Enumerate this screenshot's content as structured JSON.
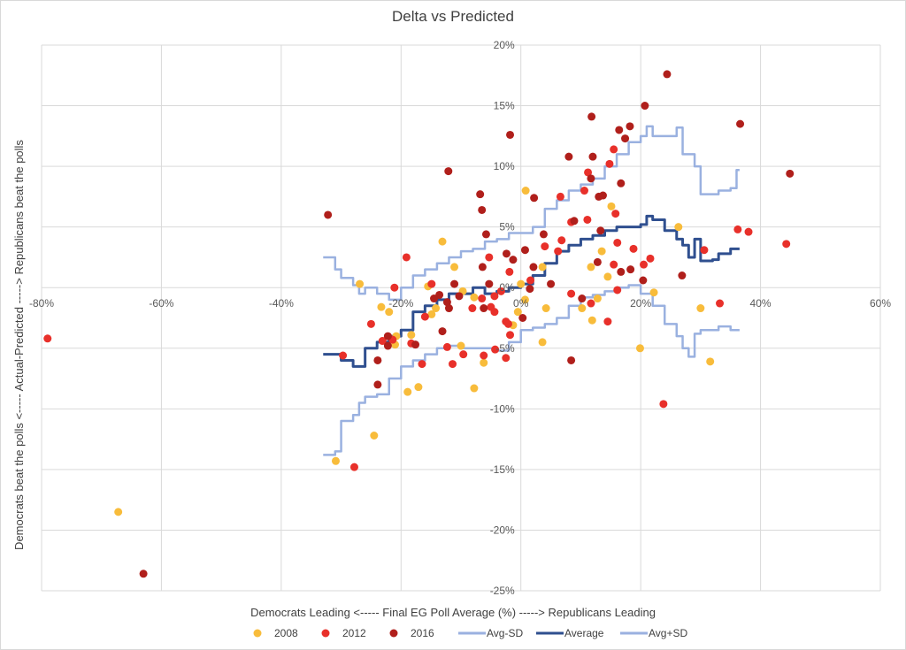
{
  "chart_data": {
    "type": "scatter",
    "title": "Delta vs Predicted",
    "xlabel": "Democrats Leading <----- Final EG Poll Average (%) -----> Republicans Leading",
    "ylabel": "Democrats  beat the polls <----- Actual-Predicted -----> Republicans beat the polls",
    "xlim": [
      -80,
      60
    ],
    "ylim": [
      -25,
      20
    ],
    "x_ticks": [
      -80,
      -60,
      -40,
      -20,
      0,
      20,
      40,
      60
    ],
    "x_tick_labels": [
      "-80%",
      "-60%",
      "-40%",
      "-20%",
      "0%",
      "20%",
      "40%",
      "60%"
    ],
    "y_ticks": [
      -25,
      -20,
      -15,
      -10,
      -5,
      0,
      5,
      10,
      15,
      20
    ],
    "y_tick_labels": [
      "-25%",
      "-20%",
      "-15%",
      "-10%",
      "-5%",
      "0%",
      "5%",
      "10%",
      "15%",
      "20%"
    ],
    "grid": true,
    "legend_position": "bottom",
    "series": [
      {
        "name": "2008",
        "kind": "scatter",
        "color": "#F8BC3B",
        "points": [
          [
            -67.2,
            -18.5
          ],
          [
            -30.9,
            -14.3
          ],
          [
            -24.5,
            -12.2
          ],
          [
            -26.9,
            0.3
          ],
          [
            -23.3,
            -1.6
          ],
          [
            -22,
            -2.0
          ],
          [
            -20.8,
            -4.0
          ],
          [
            -21,
            -4.7
          ],
          [
            -18.3,
            -3.9
          ],
          [
            -18.9,
            -8.6
          ],
          [
            -17.1,
            -8.2
          ],
          [
            -11.1,
            1.7
          ],
          [
            -13.1,
            3.8
          ],
          [
            -15.5,
            0.1
          ],
          [
            -14.9,
            -2.2
          ],
          [
            -14.2,
            -1.7
          ],
          [
            -9.7,
            -0.3
          ],
          [
            -7.8,
            -0.8
          ],
          [
            -10,
            -4.8
          ],
          [
            -7.8,
            -8.3
          ],
          [
            -6.2,
            -6.2
          ],
          [
            -1.3,
            -3.1
          ],
          [
            -0.5,
            -2.0
          ],
          [
            0.7,
            -1.0
          ],
          [
            0,
            0.3
          ],
          [
            0.8,
            8.0
          ],
          [
            3.6,
            1.7
          ],
          [
            4.2,
            -1.7
          ],
          [
            3.6,
            -4.5
          ],
          [
            15.1,
            6.7
          ],
          [
            13.5,
            3.0
          ],
          [
            11.7,
            1.7
          ],
          [
            14.5,
            0.9
          ],
          [
            12.8,
            -0.9
          ],
          [
            10.2,
            -1.7
          ],
          [
            11.9,
            -2.7
          ],
          [
            19.9,
            -5.0
          ],
          [
            22.2,
            -0.4
          ],
          [
            26.3,
            5.0
          ],
          [
            30,
            -1.7
          ],
          [
            31.6,
            -6.1
          ]
        ]
      },
      {
        "name": "2012",
        "kind": "scatter",
        "color": "#E8302A",
        "points": [
          [
            -79,
            -4.2
          ],
          [
            -27.8,
            -14.8
          ],
          [
            -29.7,
            -5.6
          ],
          [
            -25,
            -3.0
          ],
          [
            -21.1,
            0
          ],
          [
            -19.1,
            2.5
          ],
          [
            -23.1,
            -4.4
          ],
          [
            -21.4,
            -4.3
          ],
          [
            -18.3,
            -4.6
          ],
          [
            -16.5,
            -6.3
          ],
          [
            -16,
            -2.4
          ],
          [
            -14.9,
            0.3
          ],
          [
            -12.3,
            -4.9
          ],
          [
            -11.4,
            -6.3
          ],
          [
            -9.6,
            -5.5
          ],
          [
            -8.1,
            -1.7
          ],
          [
            -5.3,
            2.5
          ],
          [
            -6.2,
            -5.6
          ],
          [
            -5,
            -1.6
          ],
          [
            -4.4,
            -2.0
          ],
          [
            -4.4,
            -0.7
          ],
          [
            -3.3,
            -0.3
          ],
          [
            -6.5,
            -0.9
          ],
          [
            -4.3,
            -5.1
          ],
          [
            -2.5,
            -2.8
          ],
          [
            -2.1,
            -3.0
          ],
          [
            -1.8,
            -3.9
          ],
          [
            -2.5,
            -5.8
          ],
          [
            -1.9,
            1.3
          ],
          [
            1.6,
            0.6
          ],
          [
            4,
            3.4
          ],
          [
            6.8,
            3.9
          ],
          [
            6.2,
            3.0
          ],
          [
            8.4,
            5.4
          ],
          [
            11.1,
            5.6
          ],
          [
            15.8,
            6.1
          ],
          [
            16.1,
            3.7
          ],
          [
            18.8,
            3.2
          ],
          [
            15.5,
            1.9
          ],
          [
            20.5,
            1.9
          ],
          [
            21.6,
            2.4
          ],
          [
            16.1,
            -0.2
          ],
          [
            8.4,
            -0.5
          ],
          [
            11.7,
            -1.3
          ],
          [
            14.5,
            -2.8
          ],
          [
            30.6,
            3.1
          ],
          [
            33.2,
            -1.3
          ],
          [
            36.2,
            4.8
          ],
          [
            38,
            4.6
          ],
          [
            44.3,
            3.6
          ],
          [
            23.8,
            -9.6
          ],
          [
            11.2,
            9.5
          ],
          [
            14.8,
            10.2
          ],
          [
            15.5,
            11.4
          ],
          [
            10.6,
            8.0
          ],
          [
            6.6,
            7.5
          ]
        ]
      },
      {
        "name": "2016",
        "kind": "scatter",
        "color": "#B01F1B",
        "points": [
          [
            -63,
            -23.6
          ],
          [
            -32.2,
            6.0
          ],
          [
            -23.9,
            -6.0
          ],
          [
            -23.9,
            -8.0
          ],
          [
            -22.2,
            -4.0
          ],
          [
            -22.2,
            -4.8
          ],
          [
            -17.6,
            -4.7
          ],
          [
            -13.1,
            -3.6
          ],
          [
            -13.6,
            -0.6
          ],
          [
            -14.5,
            -0.9
          ],
          [
            -11.1,
            0.3
          ],
          [
            -12.3,
            -1.2
          ],
          [
            -12,
            -1.7
          ],
          [
            -10.3,
            -0.7
          ],
          [
            -6.8,
            7.7
          ],
          [
            -6.5,
            6.4
          ],
          [
            -5.8,
            4.4
          ],
          [
            -6.4,
            1.7
          ],
          [
            -5.3,
            0.3
          ],
          [
            -6.2,
            -1.7
          ],
          [
            -2.4,
            2.8
          ],
          [
            -1.3,
            2.3
          ],
          [
            0.3,
            -2.5
          ],
          [
            0.7,
            3.1
          ],
          [
            1.5,
            -0.1
          ],
          [
            2.1,
            1.7
          ],
          [
            2.2,
            7.4
          ],
          [
            3.8,
            4.4
          ],
          [
            5,
            0.3
          ],
          [
            8.9,
            5.5
          ],
          [
            8.4,
            -6.0
          ],
          [
            10.2,
            -0.9
          ],
          [
            12.8,
            2.1
          ],
          [
            16.7,
            1.3
          ],
          [
            18.3,
            1.5
          ],
          [
            20.4,
            0.6
          ],
          [
            13.3,
            4.7
          ],
          [
            26.9,
            1.0
          ],
          [
            13,
            7.5
          ],
          [
            24.4,
            17.6
          ],
          [
            20.7,
            15.0
          ],
          [
            11.8,
            14.1
          ],
          [
            18.2,
            13.3
          ],
          [
            17.4,
            12.3
          ],
          [
            16.4,
            13.0
          ],
          [
            36.6,
            13.5
          ],
          [
            44.9,
            9.4
          ],
          [
            -1.8,
            12.6
          ],
          [
            -12.1,
            9.6
          ],
          [
            12,
            10.8
          ],
          [
            11.7,
            9.0
          ],
          [
            8,
            10.8
          ],
          [
            16.7,
            8.6
          ],
          [
            13.7,
            7.6
          ]
        ]
      },
      {
        "name": "Avg-SD",
        "kind": "line",
        "color": "#9AB1E0",
        "points": [
          [
            -33,
            -13.8
          ],
          [
            -31,
            -13.5
          ],
          [
            -30,
            -11
          ],
          [
            -28,
            -10.5
          ],
          [
            -27,
            -9.5
          ],
          [
            -26,
            -9
          ],
          [
            -24,
            -8.8
          ],
          [
            -22,
            -7.5
          ],
          [
            -20,
            -6.5
          ],
          [
            -18,
            -6
          ],
          [
            -16,
            -5.5
          ],
          [
            -14,
            -5
          ],
          [
            -12,
            -4.8
          ],
          [
            -10,
            -5
          ],
          [
            -8,
            -5
          ],
          [
            -6,
            -5
          ],
          [
            -4,
            -5.2
          ],
          [
            -2,
            -4.5
          ],
          [
            0,
            -3.5
          ],
          [
            2,
            -3.3
          ],
          [
            4,
            -3
          ],
          [
            6,
            -2.5
          ],
          [
            8,
            -1.5
          ],
          [
            10,
            -0.8
          ],
          [
            12,
            -0.6
          ],
          [
            14,
            -0.3
          ],
          [
            16,
            0
          ],
          [
            18,
            0.2
          ],
          [
            20,
            -0.5
          ],
          [
            22,
            -1.5
          ],
          [
            24,
            -3
          ],
          [
            26,
            -4
          ],
          [
            27,
            -5
          ],
          [
            28,
            -5.7
          ],
          [
            29,
            -3.8
          ],
          [
            30,
            -3.5
          ],
          [
            33,
            -3.2
          ],
          [
            35,
            -3.5
          ],
          [
            36.5,
            -3.5
          ]
        ]
      },
      {
        "name": "Average",
        "kind": "line",
        "color": "#2F4F8F",
        "points": [
          [
            -33,
            -5.5
          ],
          [
            -31,
            -5.5
          ],
          [
            -30,
            -6
          ],
          [
            -28,
            -6.5
          ],
          [
            -26,
            -5
          ],
          [
            -24,
            -4.5
          ],
          [
            -22,
            -4
          ],
          [
            -20,
            -3.5
          ],
          [
            -18,
            -2
          ],
          [
            -16,
            -1.5
          ],
          [
            -14,
            -1
          ],
          [
            -12,
            -0.5
          ],
          [
            -10,
            -0.5
          ],
          [
            -8,
            0
          ],
          [
            -6,
            -0.5
          ],
          [
            -4,
            -0.3
          ],
          [
            -2,
            0
          ],
          [
            0,
            0.3
          ],
          [
            2,
            1
          ],
          [
            4,
            2
          ],
          [
            6,
            3
          ],
          [
            8,
            3.5
          ],
          [
            10,
            4
          ],
          [
            12,
            4.3
          ],
          [
            14,
            4.7
          ],
          [
            16,
            5
          ],
          [
            18,
            5
          ],
          [
            20,
            5.2
          ],
          [
            21,
            5.9
          ],
          [
            22,
            5.6
          ],
          [
            24,
            4.7
          ],
          [
            26,
            4
          ],
          [
            27,
            3.5
          ],
          [
            28,
            2.5
          ],
          [
            29,
            4
          ],
          [
            30,
            2.2
          ],
          [
            32,
            2.3
          ],
          [
            33,
            2.8
          ],
          [
            35,
            3.2
          ],
          [
            36.5,
            3.2
          ]
        ]
      },
      {
        "name": "Avg+SD",
        "kind": "line",
        "color": "#9AB1E0",
        "points": [
          [
            -33,
            2.5
          ],
          [
            -32,
            2.5
          ],
          [
            -31,
            1.5
          ],
          [
            -30,
            0.8
          ],
          [
            -28,
            0.2
          ],
          [
            -27,
            -0.5
          ],
          [
            -26,
            0
          ],
          [
            -24,
            -0.5
          ],
          [
            -22,
            -1
          ],
          [
            -20,
            0
          ],
          [
            -18,
            1
          ],
          [
            -16,
            1.5
          ],
          [
            -14,
            2
          ],
          [
            -12,
            2.5
          ],
          [
            -10,
            3
          ],
          [
            -8,
            3.2
          ],
          [
            -6,
            3.8
          ],
          [
            -4,
            4
          ],
          [
            -2,
            4.5
          ],
          [
            0,
            4.5
          ],
          [
            2,
            5
          ],
          [
            4,
            6.5
          ],
          [
            6,
            7.2
          ],
          [
            8,
            8
          ],
          [
            10,
            8.5
          ],
          [
            12,
            9
          ],
          [
            14,
            10
          ],
          [
            16,
            11
          ],
          [
            18,
            12
          ],
          [
            20,
            12.5
          ],
          [
            21,
            13.3
          ],
          [
            22,
            12.5
          ],
          [
            24,
            12.5
          ],
          [
            26,
            13.2
          ],
          [
            27,
            11
          ],
          [
            28,
            11
          ],
          [
            29,
            10
          ],
          [
            30,
            7.7
          ],
          [
            32,
            7.7
          ],
          [
            33,
            8
          ],
          [
            35,
            8.2
          ],
          [
            36,
            9.7
          ],
          [
            36.5,
            9.7
          ]
        ]
      }
    ]
  }
}
